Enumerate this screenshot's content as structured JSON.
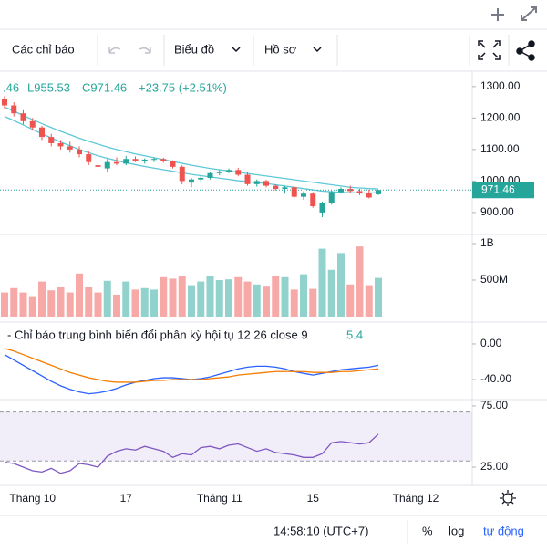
{
  "toolbar": {
    "indicators": "Các chỉ báo",
    "chart": "Biểu đồ",
    "profile": "Hồ sơ"
  },
  "ohlc_header": {
    "h": ".46",
    "l": "L955.53",
    "c": "C971.46",
    "change": "+23.75 (+2.51%)"
  },
  "last_price_label": "971.46",
  "price": {
    "ylim": [
      836,
      1343
    ],
    "yticks": [
      {
        "value": 1300,
        "label": "1300.00"
      },
      {
        "value": 1200,
        "label": "1200.00"
      },
      {
        "value": 1100,
        "label": "1100.00"
      },
      {
        "value": 1000,
        "label": "1000.00"
      },
      {
        "value": 900,
        "label": "900.00"
      }
    ],
    "ohlc": [
      [
        1260,
        1270,
        1230,
        1240
      ],
      [
        1240,
        1250,
        1205,
        1215
      ],
      [
        1215,
        1225,
        1180,
        1190
      ],
      [
        1190,
        1200,
        1160,
        1170
      ],
      [
        1170,
        1175,
        1130,
        1140
      ],
      [
        1140,
        1150,
        1110,
        1120
      ],
      [
        1120,
        1130,
        1100,
        1110
      ],
      [
        1110,
        1125,
        1090,
        1100
      ],
      [
        1100,
        1110,
        1075,
        1085
      ],
      [
        1085,
        1095,
        1050,
        1060
      ],
      [
        1050,
        1065,
        1035,
        1045
      ],
      [
        1040,
        1070,
        1030,
        1060
      ],
      [
        1060,
        1075,
        1050,
        1055
      ],
      [
        1055,
        1080,
        1050,
        1070
      ],
      [
        1070,
        1078,
        1060,
        1065
      ],
      [
        1062,
        1072,
        1055,
        1068
      ],
      [
        1068,
        1075,
        1060,
        1070
      ],
      [
        1070,
        1074,
        1058,
        1062
      ],
      [
        1062,
        1066,
        1040,
        1045
      ],
      [
        1045,
        1050,
        990,
        1000
      ],
      [
        995,
        1010,
        980,
        1005
      ],
      [
        1005,
        1015,
        995,
        1010
      ],
      [
        1010,
        1030,
        1005,
        1025
      ],
      [
        1025,
        1035,
        1018,
        1030
      ],
      [
        1030,
        1040,
        1025,
        1035
      ],
      [
        1035,
        1042,
        1015,
        1020
      ],
      [
        1020,
        1028,
        985,
        990
      ],
      [
        990,
        1005,
        982,
        1000
      ],
      [
        1000,
        1004,
        980,
        985
      ],
      [
        985,
        990,
        970,
        975
      ],
      [
        975,
        985,
        960,
        980
      ],
      [
        980,
        982,
        945,
        950
      ],
      [
        950,
        968,
        940,
        960
      ],
      [
        960,
        965,
        915,
        920
      ],
      [
        900,
        935,
        885,
        930
      ],
      [
        930,
        970,
        925,
        965
      ],
      [
        965,
        980,
        960,
        975
      ],
      [
        975,
        985,
        962,
        968
      ],
      [
        968,
        975,
        955,
        962
      ],
      [
        962,
        972,
        945,
        947.71
      ],
      [
        958,
        971.46,
        955.53,
        971.46
      ]
    ],
    "ma_upper": [
      1235,
      1222,
      1208,
      1195,
      1182,
      1170,
      1158,
      1147,
      1136,
      1126,
      1117,
      1108,
      1100,
      1093,
      1086,
      1080,
      1074,
      1068,
      1062,
      1056,
      1050,
      1045,
      1040,
      1036,
      1032,
      1028,
      1024,
      1020,
      1016,
      1012,
      1008,
      1004,
      1000,
      996,
      992,
      988,
      984,
      980,
      978,
      976,
      975
    ],
    "ma_lower": [
      1205,
      1192,
      1178,
      1164,
      1150,
      1137,
      1124,
      1112,
      1100,
      1090,
      1080,
      1072,
      1065,
      1058,
      1052,
      1046,
      1041,
      1036,
      1031,
      1026,
      1021,
      1017,
      1013,
      1009,
      1005,
      1001,
      998,
      995,
      992,
      988,
      984,
      980,
      976,
      972,
      968,
      966,
      964,
      963,
      962,
      962,
      963
    ],
    "up_color": "#26a69a",
    "down_color": "#ef5350",
    "ma_color": "#5ec8d8"
  },
  "volume": {
    "ylim": [
      0,
      1112000000
    ],
    "yticks": [
      {
        "value": 1000000000,
        "label": "1B"
      },
      {
        "value": 500000000,
        "label": "500M"
      }
    ],
    "values": [
      330000000,
      390000000,
      330000000,
      280000000,
      480000000,
      360000000,
      400000000,
      330000000,
      590000000,
      400000000,
      330000000,
      490000000,
      300000000,
      480000000,
      370000000,
      390000000,
      370000000,
      540000000,
      520000000,
      560000000,
      430000000,
      480000000,
      550000000,
      500000000,
      510000000,
      540000000,
      480000000,
      440000000,
      410000000,
      560000000,
      540000000,
      370000000,
      580000000,
      380000000,
      930000000,
      640000000,
      870000000,
      440000000,
      960000000,
      430000000,
      530000000
    ]
  },
  "macd": {
    "label": "- Chỉ báo trung bình biến đổi phân kỳ hội tụ 12 26 close 9",
    "value_label": "5.4",
    "ylim": [
      -61.5,
      22.5
    ],
    "yticks": [
      {
        "value": 0,
        "label": "0.00"
      },
      {
        "value": -40,
        "label": "-40.00"
      }
    ],
    "macd_color": "#2962ff",
    "signal_color": "#f57c00",
    "macd": [
      -12,
      -18,
      -24,
      -30,
      -36,
      -42,
      -47,
      -51,
      -54,
      -56,
      -55,
      -53,
      -50,
      -46,
      -43,
      -41,
      -39,
      -38,
      -38,
      -39,
      -40,
      -39,
      -37,
      -34,
      -31,
      -28,
      -26,
      -25,
      -25,
      -26,
      -28,
      -31,
      -33,
      -35,
      -33,
      -31,
      -29,
      -28,
      -27,
      -26,
      -24
    ],
    "signal": [
      -5,
      -8,
      -12,
      -16,
      -20,
      -24,
      -28,
      -32,
      -35,
      -38,
      -40,
      -42,
      -43,
      -43,
      -43,
      -42,
      -41,
      -41,
      -40,
      -40,
      -40,
      -40,
      -39,
      -38,
      -37,
      -35,
      -34,
      -33,
      -32,
      -31,
      -31,
      -31,
      -31,
      -32,
      -32,
      -32,
      -31,
      -31,
      -30,
      -29,
      -28
    ]
  },
  "rsi": {
    "ylim": [
      10.1,
      78.7
    ],
    "yticks": [
      {
        "value": 75,
        "label": "75.00"
      },
      {
        "value": 25,
        "label": "25.00"
      }
    ],
    "band": [
      70,
      30
    ],
    "color": "#7e57c2",
    "values": [
      29,
      28,
      25,
      22,
      21,
      24,
      20,
      22,
      28,
      27,
      25,
      34,
      38,
      40,
      39,
      42,
      40,
      38,
      33,
      36,
      35,
      41,
      42,
      40,
      43,
      44,
      41,
      38,
      40,
      37,
      36,
      35,
      33,
      33,
      36,
      45,
      46,
      45,
      44,
      45,
      52
    ]
  },
  "x_labels": [
    {
      "index": 3,
      "label": "Tháng 10"
    },
    {
      "index": 13,
      "label": "17"
    },
    {
      "index": 23,
      "label": "Tháng 11"
    },
    {
      "index": 33,
      "label": "15"
    },
    {
      "index": 44,
      "label": "Tháng 12"
    }
  ],
  "footer": {
    "time": "14:58:10 (UTC+7)",
    "percent": "%",
    "log": "log",
    "auto": "tự động"
  }
}
